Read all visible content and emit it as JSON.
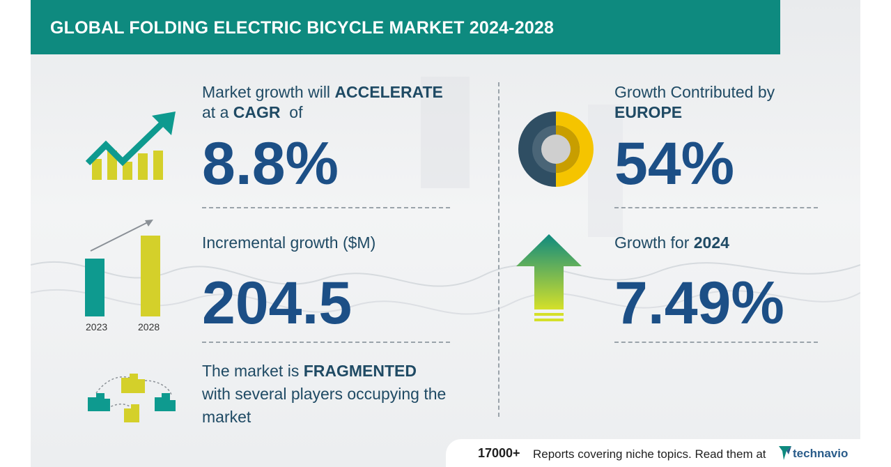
{
  "header": {
    "title": "GLOBAL FOLDING ELECTRIC BICYCLE MARKET 2024-2028"
  },
  "cagr": {
    "line1_pre": "Market growth will ",
    "line1_bold": "ACCELERATE",
    "line2_pre": "at a ",
    "line2_bold": "CAGR",
    "line2_post": "  of",
    "value": "8.8%"
  },
  "incremental": {
    "label": "Incremental growth ($M)",
    "value": "204.5",
    "bar_labels": [
      "2023",
      "2028"
    ]
  },
  "market": {
    "line1_pre": "The market is ",
    "line1_bold": "FRAGMENTED",
    "line2": "with several players occupying the",
    "line3": "market"
  },
  "region": {
    "label": "Growth Contributed by",
    "name": "EUROPE",
    "value": "54%"
  },
  "year_growth": {
    "label_pre": "Growth for ",
    "year": "2024",
    "value": "7.49%"
  },
  "footer": {
    "count": "17000+",
    "text": "Reports covering niche topics. Read them at",
    "brand": "technavio"
  },
  "colors": {
    "header": "#0e8a7f",
    "text_dark": "#1f4a64",
    "value_blue": "#1c4f86",
    "teal": "#0e9a8f",
    "yellow": "#d4d02a",
    "donut_yellow": "#f5c400",
    "donut_dark": "#2f4e63"
  },
  "icons": [
    "growth-chart-icon",
    "bar-comparison-icon",
    "fragmented-buildings-icon",
    "donut-icon",
    "up-arrow-icon"
  ]
}
